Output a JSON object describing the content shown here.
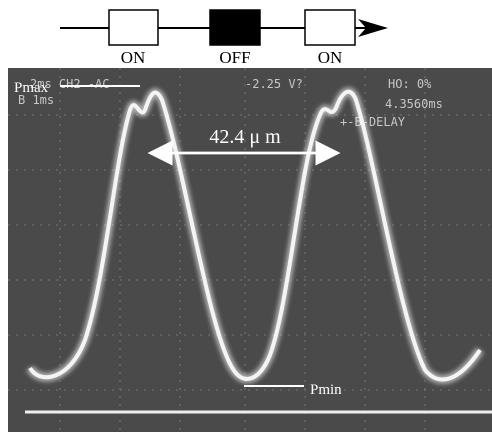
{
  "diagram": {
    "states": [
      "ON",
      "OFF",
      "ON"
    ]
  },
  "scope": {
    "header_left": "2ms CH2  -AC",
    "header_voltage": "-2.25 V?",
    "header_right": "HO:  0%",
    "second_left": "B   1ms",
    "second_right": "4.3560ms",
    "delay": "+-B-DELAY"
  },
  "annotations": {
    "pmax": "Pmax",
    "pmin": "Pmin",
    "period": "42.4 μ m"
  }
}
